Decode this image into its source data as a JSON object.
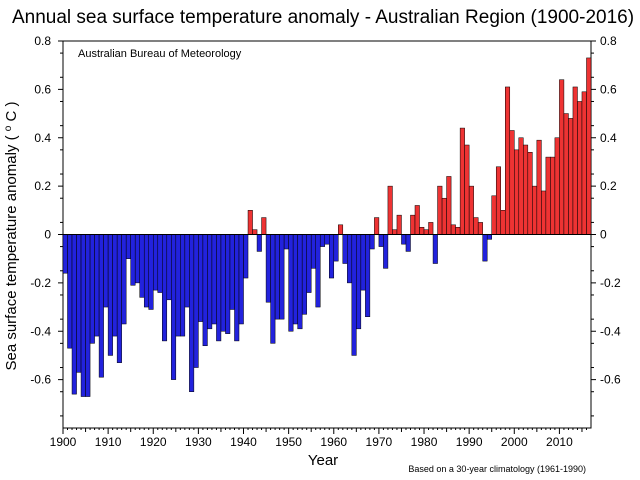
{
  "chart_data": {
    "type": "bar",
    "title": "Annual sea surface temperature anomaly - Australian Region (1900-2016)",
    "source_label": "Australian Bureau of Meteorology",
    "footnote": "Based on a 30-year climatology (1961-1990)",
    "xlabel": "Year",
    "ylabel": "Sea surface temperature anomaly (°C)",
    "ylabel_parts": {
      "prefix": "Sea surface temperature anomaly ( ",
      "degree": "o",
      "suffix": " C )"
    },
    "xlim": [
      1900,
      2016
    ],
    "ylim": [
      -0.8,
      0.8
    ],
    "x_ticks": [
      1900,
      1910,
      1920,
      1930,
      1940,
      1950,
      1960,
      1970,
      1980,
      1990,
      2000,
      2010
    ],
    "y_ticks": [
      "-0.6",
      "-0.4",
      "-0.2",
      "0",
      "0.2",
      "0.4",
      "0.6",
      "0.8"
    ],
    "colors": {
      "positive": "#ee3333",
      "negative": "#2222dd"
    },
    "years": [
      1900,
      1901,
      1902,
      1903,
      1904,
      1905,
      1906,
      1907,
      1908,
      1909,
      1910,
      1911,
      1912,
      1913,
      1914,
      1915,
      1916,
      1917,
      1918,
      1919,
      1920,
      1921,
      1922,
      1923,
      1924,
      1925,
      1926,
      1927,
      1928,
      1929,
      1930,
      1931,
      1932,
      1933,
      1934,
      1935,
      1936,
      1937,
      1938,
      1939,
      1940,
      1941,
      1942,
      1943,
      1944,
      1945,
      1946,
      1947,
      1948,
      1949,
      1950,
      1951,
      1952,
      1953,
      1954,
      1955,
      1956,
      1957,
      1958,
      1959,
      1960,
      1961,
      1962,
      1963,
      1964,
      1965,
      1966,
      1967,
      1968,
      1969,
      1970,
      1971,
      1972,
      1973,
      1974,
      1975,
      1976,
      1977,
      1978,
      1979,
      1980,
      1981,
      1982,
      1983,
      1984,
      1985,
      1986,
      1987,
      1988,
      1989,
      1990,
      1991,
      1992,
      1993,
      1994,
      1995,
      1996,
      1997,
      1998,
      1999,
      2000,
      2001,
      2002,
      2003,
      2004,
      2005,
      2006,
      2007,
      2008,
      2009,
      2010,
      2011,
      2012,
      2013,
      2014,
      2015,
      2016
    ],
    "values": [
      -0.16,
      -0.47,
      -0.66,
      -0.57,
      -0.67,
      -0.67,
      -0.45,
      -0.42,
      -0.59,
      -0.3,
      -0.5,
      -0.42,
      -0.53,
      -0.37,
      -0.1,
      -0.21,
      -0.2,
      -0.26,
      -0.3,
      -0.31,
      -0.23,
      -0.24,
      -0.44,
      -0.27,
      -0.6,
      -0.42,
      -0.42,
      -0.3,
      -0.65,
      -0.55,
      -0.36,
      -0.46,
      -0.39,
      -0.37,
      -0.44,
      -0.4,
      -0.41,
      -0.31,
      -0.44,
      -0.37,
      -0.18,
      0.1,
      0.02,
      -0.07,
      0.07,
      -0.28,
      -0.45,
      -0.35,
      -0.35,
      -0.06,
      -0.4,
      -0.37,
      -0.39,
      -0.33,
      -0.24,
      -0.14,
      -0.3,
      -0.05,
      -0.04,
      -0.18,
      -0.11,
      0.04,
      -0.12,
      -0.2,
      -0.5,
      -0.39,
      -0.23,
      -0.34,
      -0.06,
      0.07,
      -0.05,
      -0.14,
      0.2,
      0.02,
      0.08,
      -0.04,
      -0.07,
      0.08,
      0.12,
      0.03,
      0.02,
      0.05,
      -0.12,
      0.2,
      0.15,
      0.24,
      0.04,
      0.03,
      0.44,
      0.37,
      0.2,
      0.07,
      0.05,
      -0.11,
      -0.02,
      0.16,
      0.28,
      0.1,
      0.61,
      0.43,
      0.35,
      0.4,
      0.37,
      0.34,
      0.2,
      0.39,
      0.18,
      0.32,
      0.32,
      0.4,
      0.64,
      0.5,
      0.48,
      0.61,
      0.55,
      0.59,
      0.73
    ]
  }
}
